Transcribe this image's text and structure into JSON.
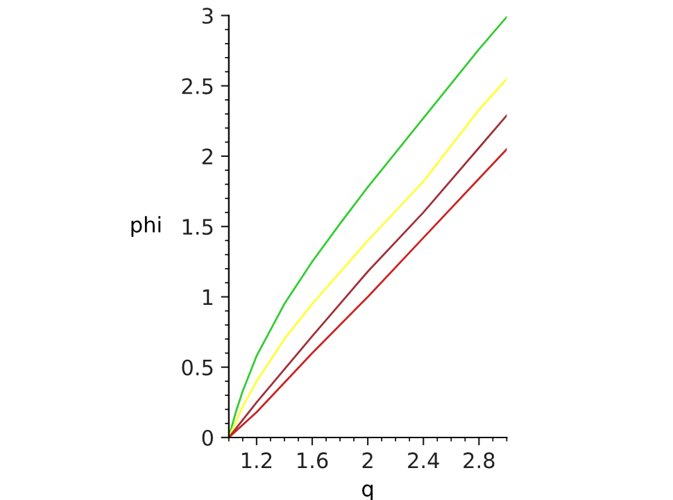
{
  "chart_data": {
    "type": "line",
    "xlabel": "q",
    "ylabel": "phi",
    "xlim": [
      1,
      3
    ],
    "ylim": [
      0,
      3
    ],
    "xticks": [
      1.2,
      1.6,
      2,
      2.4,
      2.8
    ],
    "yticks": [
      0,
      0.5,
      1,
      1.5,
      2,
      2.5,
      3
    ],
    "grid": false,
    "legend": false,
    "marker": "none",
    "line_style": "solid",
    "series": [
      {
        "color": "#33cc33",
        "x": [
          1,
          1.05,
          1.1,
          1.2,
          1.4,
          1.6,
          1.8,
          2,
          2.4,
          2.8,
          3
        ],
        "values": [
          0,
          0.18,
          0.33,
          0.58,
          0.95,
          1.25,
          1.52,
          1.78,
          2.27,
          2.76,
          2.99
        ]
      },
      {
        "color": "#ffff33",
        "x": [
          1,
          1.1,
          1.2,
          1.4,
          1.6,
          2,
          2.4,
          2.8,
          3
        ],
        "values": [
          0,
          0.22,
          0.4,
          0.7,
          0.95,
          1.4,
          1.82,
          2.33,
          2.55
        ]
      },
      {
        "color": "#a0303a",
        "x": [
          1,
          1.2,
          1.6,
          2,
          2.4,
          2.8,
          3
        ],
        "values": [
          0,
          0.25,
          0.72,
          1.18,
          1.6,
          2.06,
          2.29
        ]
      },
      {
        "color": "#cc2222",
        "x": [
          1,
          1.2,
          1.6,
          2,
          2.4,
          2.8,
          3
        ],
        "values": [
          0,
          0.18,
          0.6,
          1.0,
          1.42,
          1.84,
          2.05
        ]
      }
    ]
  }
}
